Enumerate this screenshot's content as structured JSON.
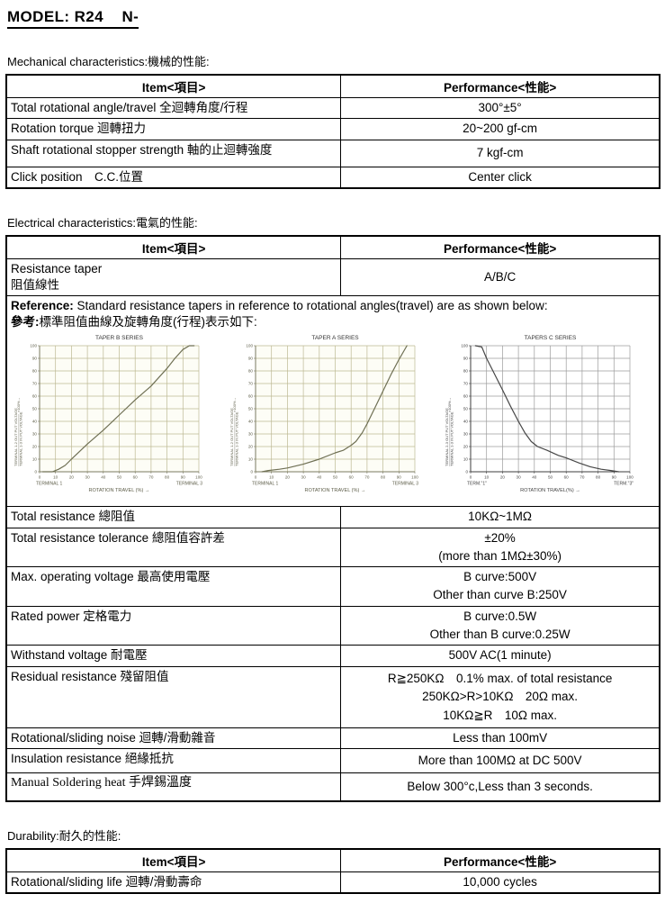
{
  "title": "MODEL: R24    N-",
  "mechanical": {
    "heading": "Mechanical characteristics:機械的性能:",
    "headers": {
      "item": "Item<項目>",
      "performance": "Performance<性能>"
    },
    "rows": [
      {
        "item": "Total rotational angle/travel 全迴轉角度/行程",
        "perf": "300°±5°"
      },
      {
        "item": "Rotation torque 迴轉扭力",
        "perf": "20~200 gf-cm"
      },
      {
        "item": "Shaft rotational stopper strength 軸的止迴轉強度",
        "perf": "7 kgf-cm"
      },
      {
        "item": "Click position　C.C.位置",
        "perf": "Center click"
      }
    ]
  },
  "electrical": {
    "heading": "Electrical characteristics:電氣的性能:",
    "headers": {
      "item": "Item<項目>",
      "performance": "Performance<性能>"
    },
    "taper_row": {
      "item": "Resistance taper\n阻值線性",
      "perf": "A/B/C"
    },
    "reference": {
      "label_en": "Reference:",
      "text_en": " Standard resistance tapers in reference to rotational angles(travel) are as shown below:",
      "label_zh": "參考:",
      "text_zh": "標準阻值曲線及旋轉角度(行程)表示如下:"
    },
    "rows": [
      {
        "item": "Total resistance 總阻值",
        "perf": "10KΩ~1MΩ"
      },
      {
        "item": "Total resistance tolerance 總阻值容許差",
        "perf": "±20%\n(more than 1MΩ±30%)"
      },
      {
        "item": "Max. operating voltage  最高使用電壓",
        "perf": "B curve:500V\nOther than curve B:250V"
      },
      {
        "item": "Rated power 定格電力",
        "perf": "B curve:0.5W\nOther than B curve:0.25W"
      },
      {
        "item": "Withstand voltage 耐電壓",
        "perf": "500V AC(1 minute)"
      },
      {
        "item": "Residual resistance 殘留阻值",
        "perf": "R≧250KΩ　0.1% max. of total resistance\n250KΩ>R>10KΩ　20Ω max.\n10KΩ≧R　10Ω max."
      },
      {
        "item": "Rotational/sliding noise 迴轉/滑動雜音",
        "perf": "Less than 100mV"
      },
      {
        "item": "Insulation resistance 絕緣抵抗",
        "perf": "More than 100MΩ at DC 500V"
      },
      {
        "item": "Manual Soldering heat 手焊錫溫度",
        "perf": "Below 300°c,Less than 3 seconds."
      }
    ]
  },
  "durability": {
    "heading": "Durability:耐久的性能:",
    "headers": {
      "item": "Item<項目>",
      "performance": "Performance<性能>"
    },
    "rows": [
      {
        "item": "Rotational/sliding life 迴轉/滑動壽命",
        "perf": "10,000 cycles"
      }
    ]
  },
  "chart_data": [
    {
      "type": "line",
      "title": "TAPER B SERIES",
      "xlabel": "ROTATION TRAVEL (%)  →",
      "ylabel_top": "TERMINAL 1-2 OUT PUT VOLTAGE",
      "ylabel_bottom": "TERMINAL 1-3 IN PUT VOLTAGE",
      "ylabel_suffix": "×100%→",
      "term_left": "TERMINAL 1",
      "term_right": "TERMINAL 3",
      "xlim": [
        0,
        100
      ],
      "ylim": [
        0,
        100
      ],
      "x_ticks": [
        0,
        10,
        20,
        30,
        40,
        50,
        60,
        70,
        80,
        90,
        100
      ],
      "y_ticks": [
        0,
        10,
        20,
        30,
        40,
        50,
        60,
        70,
        80,
        90,
        100
      ],
      "grid": true,
      "grid_color": "#bdb993",
      "line_color": "#6f7054",
      "axis_color": "#7a7a60",
      "text_color": "#5d5d48",
      "bg_color": "#fdfdf6",
      "series": [
        {
          "name": "taper-b",
          "x": [
            2,
            8,
            12,
            16,
            20,
            25,
            30,
            40,
            50,
            60,
            70,
            80,
            85,
            90,
            94,
            97
          ],
          "y": [
            0,
            0,
            2,
            5,
            10,
            16,
            22,
            33,
            45,
            57,
            68,
            82,
            90,
            97,
            100,
            100
          ]
        }
      ]
    },
    {
      "type": "line",
      "title": "TAPER A SERIES",
      "xlabel": "ROTATION TRAVEL (%)  →",
      "ylabel_top": "TERMINAL 1-2 OUT PUT VOLTAGE",
      "ylabel_bottom": "TERMINAL 1-3 IN PUT VOLTAGE",
      "ylabel_suffix": "×100%→",
      "term_left": "TERMINAL 1",
      "term_right": "TERMINAL 3",
      "xlim": [
        0,
        100
      ],
      "ylim": [
        0,
        100
      ],
      "x_ticks": [
        0,
        10,
        20,
        30,
        40,
        50,
        60,
        70,
        80,
        90,
        100
      ],
      "y_ticks": [
        0,
        10,
        20,
        30,
        40,
        50,
        60,
        70,
        80,
        90,
        100
      ],
      "grid": true,
      "grid_color": "#bdb993",
      "line_color": "#6f7054",
      "axis_color": "#7a7a60",
      "text_color": "#5d5d48",
      "bg_color": "#fdfdf6",
      "series": [
        {
          "name": "taper-a",
          "x": [
            4,
            8,
            15,
            20,
            30,
            40,
            50,
            55,
            60,
            63,
            67,
            70,
            75,
            80,
            85,
            90,
            95
          ],
          "y": [
            0,
            1,
            2,
            3,
            6,
            10,
            15,
            17,
            21,
            24,
            31,
            38,
            51,
            64,
            77,
            89,
            100
          ]
        }
      ]
    },
    {
      "type": "line",
      "title": "TAPERS  C  SERIES",
      "xlabel": "ROTATION  TRAVEL(%) →",
      "ylabel_top": "TERMINAL 2-3 OUT PUT VOLTAGE",
      "ylabel_bottom": "TERMINAL 1-3 IN PUT VOLTAGE",
      "ylabel_suffix": "×100%→",
      "term_left": "TERM.\"1\"",
      "term_right": "TERM.\"3\"",
      "xlim": [
        0,
        100
      ],
      "ylim": [
        0,
        100
      ],
      "x_ticks": [
        0,
        10,
        20,
        30,
        40,
        50,
        60,
        70,
        80,
        90,
        100
      ],
      "y_ticks": [
        0,
        10,
        20,
        30,
        40,
        50,
        60,
        70,
        80,
        90,
        100
      ],
      "grid": true,
      "grid_color": "#9c9c9c",
      "line_color": "#474747",
      "axis_color": "#3d3d3d",
      "text_color": "#444444",
      "bg_color": "#ffffff",
      "series": [
        {
          "name": "taper-c",
          "x": [
            3,
            7,
            10,
            14,
            20,
            25,
            30,
            34,
            38,
            42,
            48,
            55,
            60,
            68,
            75,
            82,
            88,
            93
          ],
          "y": [
            100,
            99,
            90,
            80,
            65,
            52,
            40,
            31,
            24,
            20,
            17,
            13,
            11,
            7,
            4,
            2,
            1,
            0
          ]
        }
      ]
    }
  ]
}
